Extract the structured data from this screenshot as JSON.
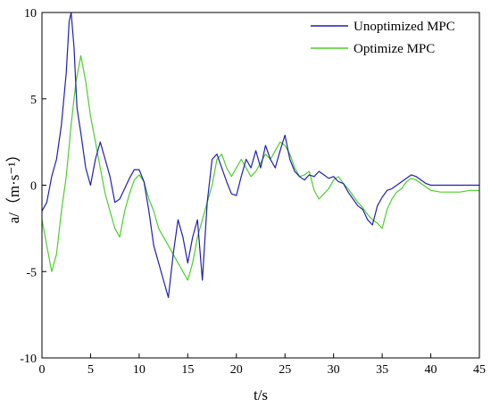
{
  "chart_data": {
    "type": "line",
    "xlabel": "t/s",
    "ylabel": "a/（m·s⁻¹）",
    "xlim": [
      0,
      45
    ],
    "ylim": [
      -10,
      10
    ],
    "xticks": [
      0,
      5,
      10,
      15,
      20,
      25,
      30,
      35,
      40,
      45
    ],
    "yticks": [
      -10,
      -5,
      0,
      5,
      10
    ],
    "grid": false,
    "legend_position": "top-right",
    "series": [
      {
        "name": "Unoptimized MPC",
        "color": "#1f1fb4",
        "x": [
          0,
          0.5,
          1.0,
          1.5,
          2.0,
          2.5,
          2.8,
          3.0,
          3.3,
          3.6,
          4.0,
          4.5,
          5.0,
          5.5,
          6.0,
          6.5,
          7.0,
          7.5,
          8.0,
          8.5,
          9.0,
          9.5,
          10.0,
          10.5,
          11.0,
          11.5,
          12.0,
          12.5,
          13.0,
          13.5,
          14.0,
          14.5,
          15.0,
          15.5,
          16.0,
          16.5,
          17.0,
          17.5,
          18.0,
          18.5,
          19.0,
          19.5,
          20.0,
          20.5,
          21.0,
          21.5,
          22.0,
          22.5,
          23.0,
          23.5,
          24.0,
          24.5,
          25.0,
          25.5,
          26.0,
          26.5,
          27.0,
          27.5,
          28.0,
          28.5,
          29.0,
          29.5,
          30.0,
          30.5,
          31.0,
          31.5,
          32.0,
          32.5,
          33.0,
          33.5,
          34.0,
          34.5,
          35.0,
          35.5,
          36.0,
          36.5,
          37.0,
          37.5,
          38.0,
          38.5,
          39.0,
          39.5,
          40.0,
          41.0,
          42.0,
          43.0,
          44.0,
          45.0
        ],
        "y": [
          -1.5,
          -1.0,
          0.5,
          1.5,
          3.5,
          6.5,
          9.5,
          10.0,
          8.0,
          4.5,
          3.0,
          1.0,
          0.0,
          1.5,
          2.5,
          1.5,
          0.5,
          -1.0,
          -0.8,
          -0.2,
          0.4,
          0.9,
          0.9,
          0.2,
          -1.5,
          -3.5,
          -4.5,
          -5.5,
          -6.5,
          -4.0,
          -2.0,
          -3.0,
          -4.5,
          -3.0,
          -2.0,
          -5.5,
          -1.0,
          1.5,
          1.8,
          1.0,
          0.2,
          -0.5,
          -0.6,
          0.5,
          1.5,
          1.0,
          2.0,
          1.0,
          2.3,
          1.5,
          1.0,
          2.0,
          2.9,
          1.5,
          0.8,
          0.5,
          0.3,
          0.6,
          0.5,
          0.8,
          0.6,
          0.4,
          0.5,
          0.2,
          0.1,
          -0.4,
          -0.8,
          -1.2,
          -1.4,
          -2.0,
          -2.3,
          -1.2,
          -0.7,
          -0.3,
          -0.2,
          0.0,
          0.2,
          0.4,
          0.6,
          0.5,
          0.3,
          0.1,
          0.0,
          0.0,
          0.0,
          0.0,
          0.0,
          0.0
        ]
      },
      {
        "name": "Optimize MPC",
        "color": "#4ccf2a",
        "x": [
          0,
          0.5,
          1.0,
          1.5,
          2.0,
          2.5,
          3.0,
          3.5,
          4.0,
          4.5,
          5.0,
          5.5,
          6.0,
          6.5,
          7.0,
          7.5,
          8.0,
          8.5,
          9.0,
          9.5,
          10.0,
          10.5,
          11.0,
          11.5,
          12.0,
          12.5,
          13.0,
          13.5,
          14.0,
          14.5,
          15.0,
          15.5,
          16.0,
          16.5,
          17.0,
          17.5,
          18.0,
          18.5,
          19.0,
          19.5,
          20.0,
          20.5,
          21.0,
          21.5,
          22.0,
          22.5,
          23.0,
          23.5,
          24.0,
          24.5,
          25.0,
          25.5,
          26.0,
          26.5,
          27.0,
          27.5,
          28.0,
          28.5,
          29.0,
          29.5,
          30.0,
          30.5,
          31.0,
          31.5,
          32.0,
          32.5,
          33.0,
          33.5,
          34.0,
          34.5,
          35.0,
          35.5,
          36.0,
          36.5,
          37.0,
          37.5,
          38.0,
          38.5,
          39.0,
          39.5,
          40.0,
          41.0,
          42.0,
          43.0,
          44.0,
          45.0
        ],
        "y": [
          -2.0,
          -3.5,
          -5.0,
          -4.0,
          -1.5,
          0.5,
          3.5,
          6.0,
          7.5,
          6.0,
          4.0,
          2.5,
          1.0,
          -0.5,
          -1.5,
          -2.5,
          -3.0,
          -1.5,
          -0.5,
          0.3,
          0.6,
          0.2,
          -0.8,
          -1.5,
          -2.5,
          -3.0,
          -3.5,
          -4.0,
          -4.5,
          -5.0,
          -5.5,
          -4.5,
          -3.0,
          -2.0,
          -1.0,
          0.0,
          1.5,
          1.8,
          1.0,
          0.5,
          1.0,
          1.5,
          1.0,
          0.5,
          0.8,
          1.3,
          1.8,
          1.5,
          2.0,
          2.5,
          2.3,
          1.8,
          1.0,
          0.5,
          0.6,
          0.8,
          -0.3,
          -0.8,
          -0.5,
          -0.2,
          0.3,
          0.5,
          0.1,
          -0.2,
          -0.6,
          -1.0,
          -1.3,
          -1.7,
          -2.0,
          -2.2,
          -2.5,
          -1.4,
          -0.8,
          -0.4,
          -0.2,
          0.2,
          0.4,
          0.3,
          0.1,
          -0.1,
          -0.3,
          -0.4,
          -0.4,
          -0.4,
          -0.3,
          -0.3
        ]
      }
    ]
  }
}
